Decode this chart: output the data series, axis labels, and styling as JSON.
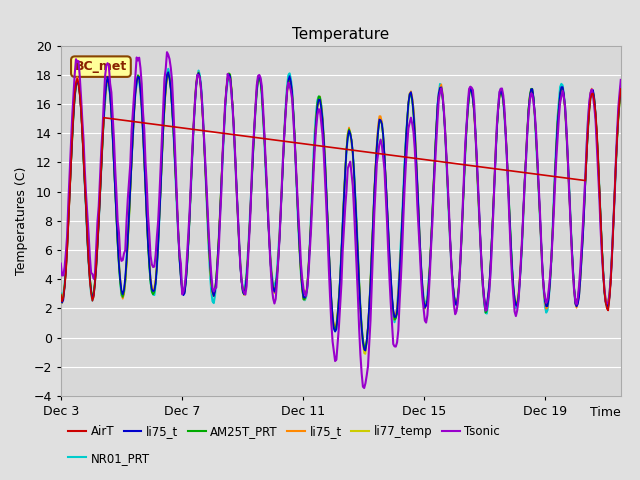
{
  "title": "Temperature",
  "xlabel": "Time",
  "ylabel": "Temperatures (C)",
  "ylim": [
    -4,
    20
  ],
  "yticks": [
    -4,
    -2,
    0,
    2,
    4,
    6,
    8,
    10,
    12,
    14,
    16,
    18,
    20
  ],
  "series": {
    "AirT": {
      "color": "#cc0000",
      "lw": 1.2
    },
    "li75_t": {
      "color": "#0000cc",
      "lw": 1.2
    },
    "AM25T_PRT": {
      "color": "#00aa00",
      "lw": 1.2
    },
    "li75_t2": {
      "color": "#ff8800",
      "lw": 1.2
    },
    "li77_temp": {
      "color": "#cccc00",
      "lw": 1.2
    },
    "Tsonic": {
      "color": "#9900cc",
      "lw": 1.5
    },
    "NR01_PRT": {
      "color": "#00cccc",
      "lw": 1.5
    }
  },
  "annotation": {
    "text": "BC_met",
    "fontsize": 9,
    "bg": "#ffff99",
    "border_color": "#884400",
    "text_color": "#882200"
  },
  "xtick_labels": [
    "Dec 3",
    "Dec 7",
    "Dec 11",
    "Dec 15",
    "Dec 19"
  ],
  "xtick_positions": [
    0,
    4,
    8,
    12,
    16
  ],
  "total_days": 18.5,
  "legend_labels": [
    "AirT",
    "li75_t",
    "AM25T_PRT",
    "li75_t",
    "li77_temp",
    "Tsonic",
    "NR01_PRT"
  ],
  "legend_colors": [
    "#cc0000",
    "#0000cc",
    "#00aa00",
    "#ff8800",
    "#cccc00",
    "#9900cc",
    "#00cccc"
  ]
}
